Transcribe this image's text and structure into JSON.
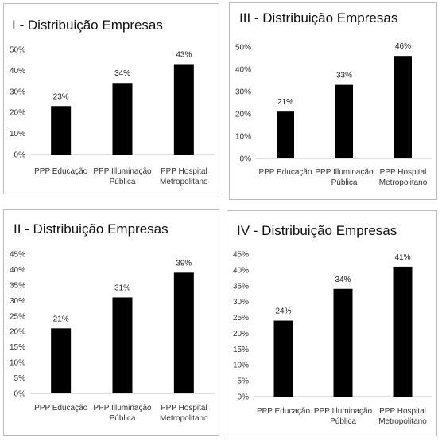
{
  "chart_data": [
    {
      "type": "bar",
      "title": "I - Distribuição Empresas",
      "categories": [
        [
          "PPP Educação"
        ],
        [
          "PPP Illuminação",
          "Pública"
        ],
        [
          "PPP Hospital",
          "Metropolitano"
        ]
      ],
      "values": [
        23,
        34,
        43
      ],
      "value_labels": [
        "23%",
        "34%",
        "43%"
      ],
      "ylim": [
        0,
        50
      ],
      "yticks": [
        "0%",
        "10%",
        "20%",
        "30%",
        "40%",
        "50%"
      ],
      "grid": false
    },
    {
      "type": "bar",
      "title": "III - Distribuição Empresas",
      "categories": [
        [
          "PPP Educação"
        ],
        [
          "PPP Illuminação",
          "Pública"
        ],
        [
          "PPP Hospital",
          "Metropolitano"
        ]
      ],
      "values": [
        21,
        33,
        46
      ],
      "value_labels": [
        "21%",
        "33%",
        "46%"
      ],
      "ylim": [
        0,
        50
      ],
      "yticks": [
        "0%",
        "10%",
        "20%",
        "30%",
        "40%",
        "50%"
      ],
      "grid": false
    },
    {
      "type": "bar",
      "title": "II - Distribuição Empresas",
      "categories": [
        [
          "PPP Educação"
        ],
        [
          "PPP Illuminação",
          "Pública"
        ],
        [
          "PPP Hospital",
          "Metropolitano"
        ]
      ],
      "values": [
        21,
        31,
        39
      ],
      "value_labels": [
        "21%",
        "31%",
        "39%"
      ],
      "ylim": [
        0,
        45
      ],
      "yticks": [
        "0%",
        "5%",
        "10%",
        "15%",
        "20%",
        "25%",
        "30%",
        "35%",
        "40%",
        "45%"
      ],
      "grid": false
    },
    {
      "type": "bar",
      "title": "IV - Distribuição Empresas",
      "categories": [
        [
          "PPP Educação"
        ],
        [
          "PPP Illuminação",
          "Pública"
        ],
        [
          "PPP Hospital",
          "Metropolitano"
        ]
      ],
      "values": [
        24,
        34,
        41
      ],
      "value_labels": [
        "24%",
        "34%",
        "41%"
      ],
      "ylim": [
        0,
        45
      ],
      "yticks": [
        "0%",
        "5%",
        "10%",
        "15%",
        "20%",
        "25%",
        "30%",
        "35%",
        "40%",
        "45%"
      ],
      "grid": false
    }
  ],
  "colors": {
    "bar": "#000000",
    "axis": "#bfbfbf",
    "border": "#bdbdbd"
  }
}
